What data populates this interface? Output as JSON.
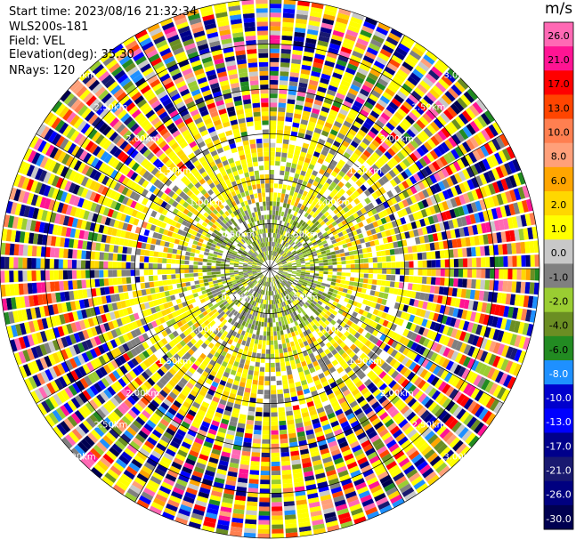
{
  "header": {
    "start_time": "Start time: 2023/08/16 21:32:34",
    "site": "WLS200s-181",
    "field": "Field: VEL",
    "elevation": "Elevation(deg): 35.30",
    "nrays": "NRays: 120"
  },
  "chart_data": {
    "type": "heatmap",
    "projection": "polar-ppi",
    "field": "VEL",
    "units": "m/s",
    "n_rays": 120,
    "max_range_km": 3.0,
    "range_rings_km": [
      0.5,
      1.0,
      1.5,
      2.0,
      2.5,
      3.0
    ],
    "ring_labels": [
      "0.50km",
      "1.00km",
      "1.50km",
      "2.00km",
      "2.50km",
      "3.00km"
    ],
    "spoke_azimuths_deg": [
      0,
      30,
      60,
      90,
      120,
      150,
      180,
      210,
      240,
      270,
      300,
      330
    ],
    "colorbar": {
      "title": "m/s",
      "ticks": [
        "26.0",
        "21.0",
        "17.0",
        "13.0",
        "10.0",
        "8.0",
        "6.0",
        "2.0",
        "1.0",
        "0.0",
        "-1.0",
        "-2.0",
        "-4.0",
        "-6.0",
        "-8.0",
        "-10.0",
        "-13.0",
        "-17.0",
        "-21.0",
        "-26.0",
        "-30.0"
      ],
      "colors": [
        "#ff69b4",
        "#ff1493",
        "#ff0000",
        "#ff4500",
        "#ff7f50",
        "#ffa07a",
        "#ffa500",
        "#ffd700",
        "#ffff00",
        "#c8c8c8",
        "#808080",
        "#9acd32",
        "#6b8e23",
        "#228b22",
        "#1e90ff",
        "#0000cd",
        "#0000ff",
        "#00008b",
        "#191970",
        "#000080",
        "#000050"
      ]
    }
  }
}
